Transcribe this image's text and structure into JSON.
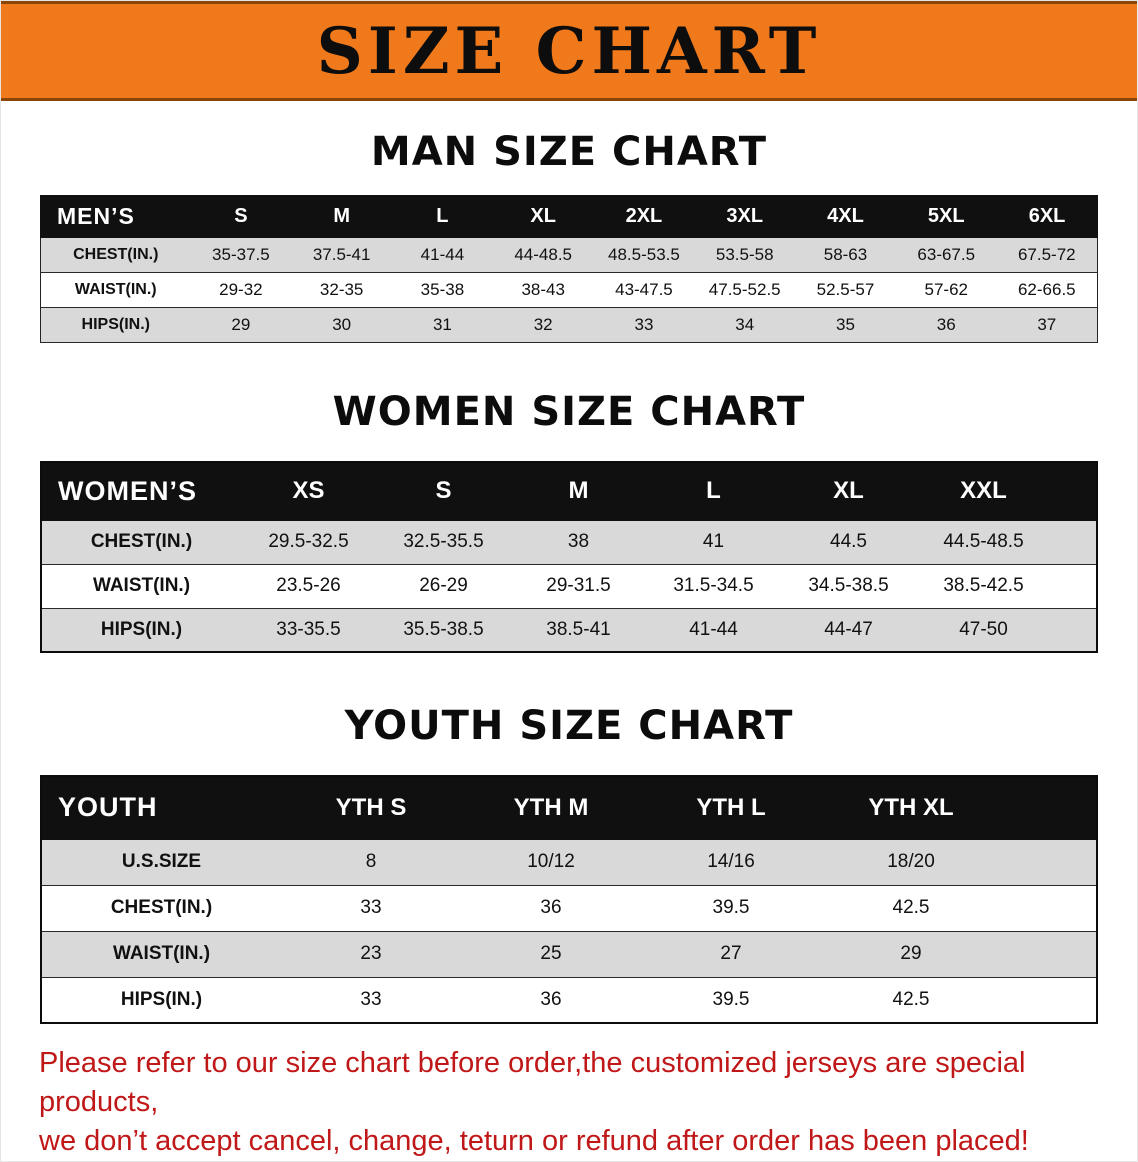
{
  "banner": {
    "title": "SIZE CHART"
  },
  "sections": [
    {
      "heading": "MAN SIZE CHART",
      "table": {
        "header": [
          "MEN’S",
          "S",
          "M",
          "L",
          "XL",
          "2XL",
          "3XL",
          "4XL",
          "5XL",
          "6XL"
        ],
        "rows": [
          {
            "label": "CHEST(IN.)",
            "values": [
              "35-37.5",
              "37.5-41",
              "41-44",
              "44-48.5",
              "48.5-53.5",
              "53.5-58",
              "58-63",
              "63-67.5",
              "67.5-72"
            ]
          },
          {
            "label": "WAIST(IN.)",
            "values": [
              "29-32",
              "32-35",
              "35-38",
              "38-43",
              "43-47.5",
              "47.5-52.5",
              "52.5-57",
              "57-62",
              "62-66.5"
            ]
          },
          {
            "label": "HIPS(IN.)",
            "values": [
              "29",
              "30",
              "31",
              "32",
              "33",
              "34",
              "35",
              "36",
              "37"
            ]
          }
        ]
      }
    },
    {
      "heading": "WOMEN SIZE CHART",
      "table": {
        "header": [
          "WOMEN’S",
          "XS",
          "S",
          "M",
          "L",
          "XL",
          "XXL"
        ],
        "rows": [
          {
            "label": "CHEST(IN.)",
            "values": [
              "29.5-32.5",
              "32.5-35.5",
              "38",
              "41",
              "44.5",
              "44.5-48.5"
            ]
          },
          {
            "label": "WAIST(IN.)",
            "values": [
              "23.5-26",
              "26-29",
              "29-31.5",
              "31.5-34.5",
              "34.5-38.5",
              "38.5-42.5"
            ]
          },
          {
            "label": "HIPS(IN.)",
            "values": [
              "33-35.5",
              "35.5-38.5",
              "38.5-41",
              "41-44",
              "44-47",
              "47-50"
            ]
          }
        ]
      }
    },
    {
      "heading": "YOUTH SIZE CHART",
      "table": {
        "header": [
          "YOUTH",
          "YTH S",
          "YTH M",
          "YTH L",
          "YTH XL"
        ],
        "rows": [
          {
            "label": "U.S.SIZE",
            "values": [
              "8",
              "10/12",
              "14/16",
              "18/20"
            ]
          },
          {
            "label": "CHEST(IN.)",
            "values": [
              "33",
              "36",
              "39.5",
              "42.5"
            ]
          },
          {
            "label": "WAIST(IN.)",
            "values": [
              "23",
              "25",
              "27",
              "29"
            ]
          },
          {
            "label": "HIPS(IN.)",
            "values": [
              "33",
              "36",
              "39.5",
              "42.5"
            ]
          }
        ]
      }
    }
  ],
  "note": {
    "line1": "Please refer to our size chart before order,the customized jerseys are special products,",
    "line2": "we don’t accept cancel, change, teturn or refund after order has been placed!"
  },
  "colors": {
    "banner": "#f0791b",
    "header-bg": "#101010",
    "alt": "#d9d9d9",
    "note": "#c01818"
  }
}
